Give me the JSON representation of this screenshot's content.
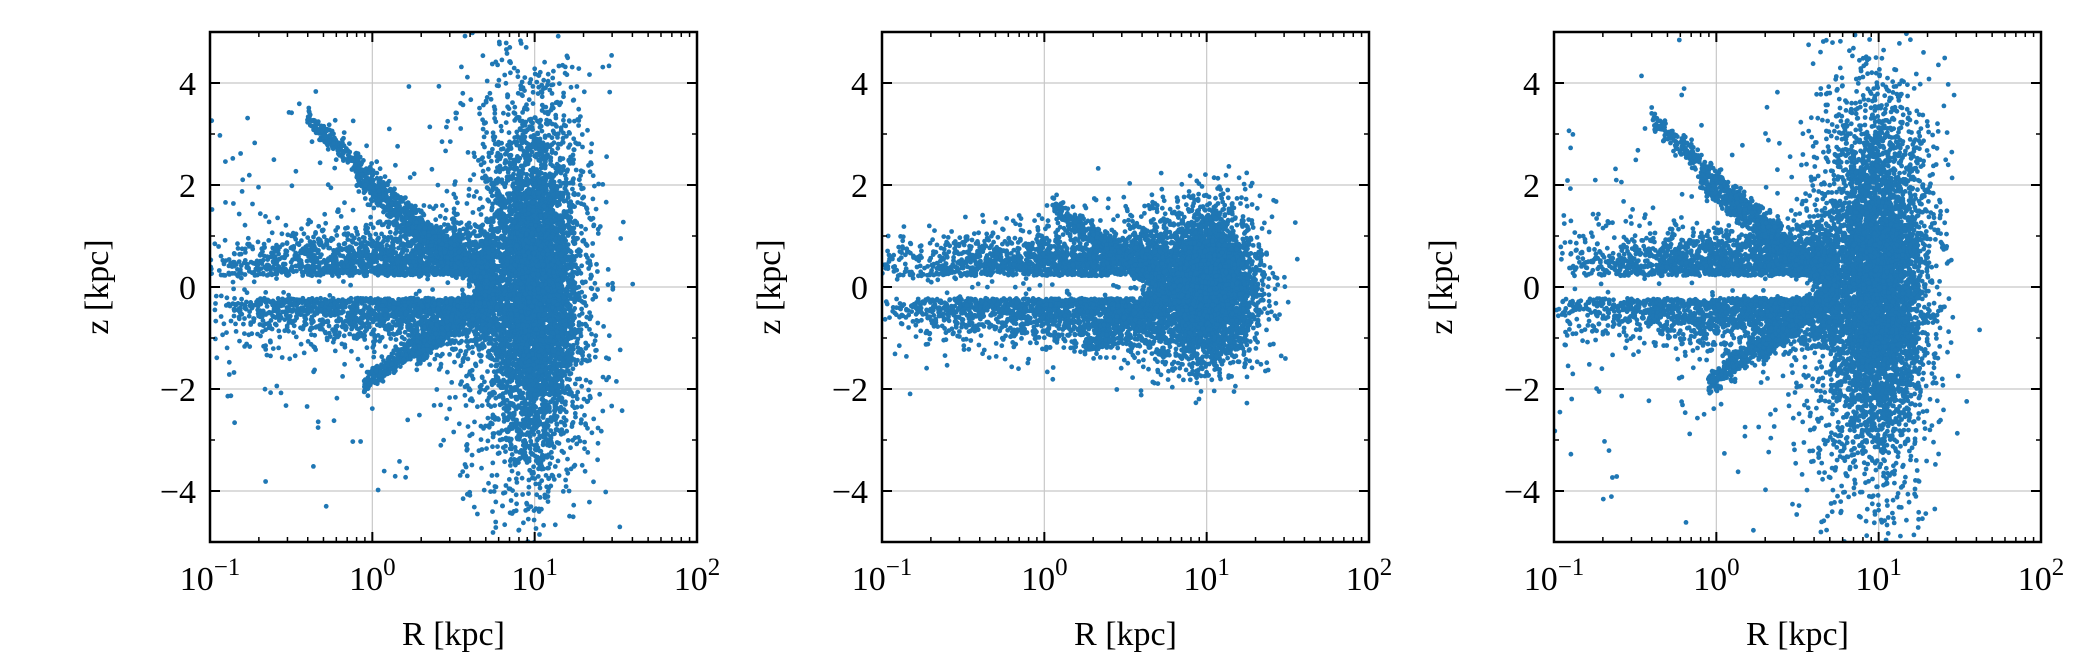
{
  "chart_data": [
    {
      "type": "scatter",
      "xlabel": "R [kpc]",
      "ylabel": "z [kpc]",
      "xscale": "log",
      "xlim": [
        0.1,
        100
      ],
      "ylim": [
        -5,
        5
      ],
      "xticks": [
        {
          "base": "10",
          "exp": "−1"
        },
        {
          "base": "10",
          "exp": "0"
        },
        {
          "base": "10",
          "exp": "1"
        },
        {
          "base": "10",
          "exp": "2"
        }
      ],
      "yticks": [
        "−4",
        "−2",
        "0",
        "2",
        "4"
      ],
      "grid": true,
      "color": "#1f77b4",
      "spread": 1.0
    },
    {
      "type": "scatter",
      "xlabel": "R [kpc]",
      "ylabel": "z [kpc]",
      "xscale": "log",
      "xlim": [
        0.1,
        100
      ],
      "ylim": [
        -5,
        5
      ],
      "xticks": [
        {
          "base": "10",
          "exp": "−1"
        },
        {
          "base": "10",
          "exp": "0"
        },
        {
          "base": "10",
          "exp": "1"
        },
        {
          "base": "10",
          "exp": "2"
        }
      ],
      "yticks": [
        "−4",
        "−2",
        "0",
        "2",
        "4"
      ],
      "grid": true,
      "color": "#1f77b4",
      "spread": 0.45
    },
    {
      "type": "scatter",
      "xlabel": "R [kpc]",
      "ylabel": "z [kpc]",
      "xscale": "log",
      "xlim": [
        0.1,
        100
      ],
      "ylim": [
        -5,
        5
      ],
      "xticks": [
        {
          "base": "10",
          "exp": "−1"
        },
        {
          "base": "10",
          "exp": "0"
        },
        {
          "base": "10",
          "exp": "1"
        },
        {
          "base": "10",
          "exp": "2"
        }
      ],
      "yticks": [
        "−4",
        "−2",
        "0",
        "2",
        "4"
      ],
      "grid": true,
      "color": "#1f77b4",
      "spread": 1.0
    }
  ]
}
